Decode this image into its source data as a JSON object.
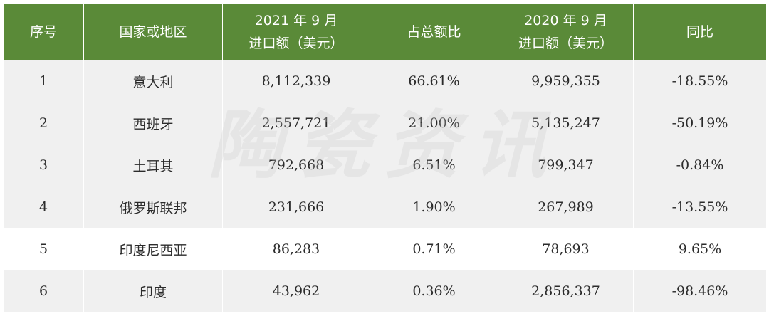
{
  "table": {
    "headers": {
      "index": "序号",
      "country": "国家或地区",
      "import_2021_line1": "2021 年 9 月",
      "import_2021_line2": "进口额（美元）",
      "share": "占总额比",
      "import_2020_line1": "2020 年 9 月",
      "import_2020_line2": "进口额（美元）",
      "yoy": "同比"
    },
    "rows": [
      {
        "index": "1",
        "country": "意大利",
        "import_2021": "8,112,339",
        "share": "66.61%",
        "import_2020": "9,959,355",
        "yoy": "-18.55%"
      },
      {
        "index": "2",
        "country": "西班牙",
        "import_2021": "2,557,721",
        "share": "21.00%",
        "import_2020": "5,135,247",
        "yoy": "-50.19%"
      },
      {
        "index": "3",
        "country": "土耳其",
        "import_2021": "792,668",
        "share": "6.51%",
        "import_2020": "799,347",
        "yoy": "-0.84%"
      },
      {
        "index": "4",
        "country": "俄罗斯联邦",
        "import_2021": "231,666",
        "share": "1.90%",
        "import_2020": "267,989",
        "yoy": "-13.55%"
      },
      {
        "index": "5",
        "country": "印度尼西亚",
        "import_2021": "86,283",
        "share": "0.71%",
        "import_2020": "78,693",
        "yoy": "9.65%"
      },
      {
        "index": "6",
        "country": "印度",
        "import_2021": "43,962",
        "share": "0.36%",
        "import_2020": "2,856,337",
        "yoy": "-98.46%"
      }
    ]
  },
  "watermark": {
    "text": "陶瓷资讯"
  },
  "colors": {
    "header_bg": "#5a8a38",
    "header_text": "#ffffff",
    "row_shaded": "#f0f0f0",
    "row_plain": "#ffffff",
    "cell_text": "#2b2b2b"
  }
}
